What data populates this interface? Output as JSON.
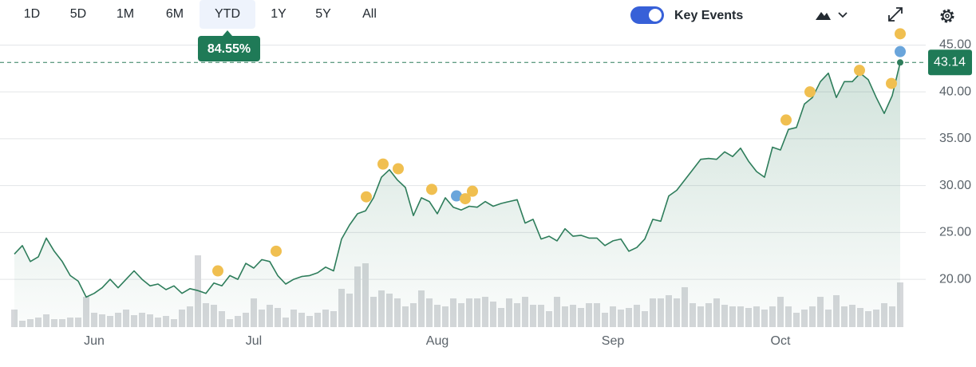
{
  "toolbar": {
    "ranges": [
      "1D",
      "5D",
      "1M",
      "6M",
      "YTD",
      "1Y",
      "5Y",
      "All"
    ],
    "selected_range": 4,
    "key_events_label": "Key Events",
    "key_events_on": true,
    "ytd_change": "84.55%"
  },
  "chart_data": {
    "type": "line",
    "color": "#2e7d5b",
    "grid": true,
    "categories": [
      null,
      null,
      null,
      null,
      null,
      null,
      null,
      null,
      null,
      null,
      "Jun",
      null,
      null,
      null,
      null,
      null,
      null,
      null,
      null,
      null,
      null,
      null,
      null,
      null,
      null,
      null,
      null,
      null,
      null,
      null,
      "Jul",
      null,
      null,
      null,
      null,
      null,
      null,
      null,
      null,
      null,
      null,
      null,
      null,
      null,
      null,
      null,
      null,
      null,
      null,
      null,
      null,
      null,
      null,
      "Aug",
      null,
      null,
      null,
      null,
      null,
      null,
      null,
      null,
      null,
      null,
      null,
      null,
      null,
      null,
      null,
      null,
      null,
      null,
      null,
      null,
      null,
      "Sep",
      null,
      null,
      null,
      null,
      null,
      null,
      null,
      null,
      null,
      null,
      null,
      null,
      null,
      null,
      null,
      null,
      null,
      null,
      null,
      null,
      "Oct",
      null,
      null,
      null,
      null,
      null,
      null,
      null,
      null,
      null,
      null,
      null,
      null,
      null,
      null,
      null
    ],
    "values": [
      22.7,
      23.6,
      21.9,
      22.4,
      24.4,
      23.0,
      21.9,
      20.4,
      19.8,
      18.1,
      18.5,
      19.1,
      20.0,
      19.1,
      20.0,
      20.9,
      20.0,
      19.3,
      19.5,
      18.9,
      19.3,
      18.5,
      19.0,
      18.8,
      18.5,
      19.6,
      19.3,
      20.4,
      20.0,
      21.7,
      21.2,
      22.1,
      21.9,
      20.4,
      19.5,
      20.0,
      20.3,
      20.4,
      20.7,
      21.3,
      20.9,
      24.3,
      25.8,
      27.0,
      27.3,
      28.7,
      30.9,
      31.7,
      30.6,
      29.8,
      26.8,
      28.7,
      28.3,
      27.0,
      28.7,
      27.7,
      27.4,
      27.8,
      27.7,
      28.3,
      27.8,
      28.1,
      28.3,
      28.5,
      26.0,
      26.4,
      24.3,
      24.6,
      24.1,
      25.4,
      24.6,
      24.7,
      24.4,
      24.4,
      23.6,
      24.1,
      24.3,
      23.0,
      23.4,
      24.3,
      26.4,
      26.2,
      28.9,
      29.5,
      30.6,
      31.7,
      32.8,
      32.9,
      32.8,
      33.6,
      33.1,
      34.0,
      32.6,
      31.5,
      30.9,
      34.1,
      33.8,
      36.0,
      36.2,
      38.7,
      39.4,
      41.1,
      42.0,
      39.4,
      41.1,
      41.1,
      42.0,
      41.3,
      39.4,
      37.7,
      39.6,
      43.14
    ],
    "volume": [
      22,
      8,
      10,
      12,
      16,
      10,
      10,
      12,
      12,
      38,
      18,
      16,
      14,
      18,
      22,
      15,
      18,
      16,
      12,
      14,
      10,
      22,
      26,
      90,
      30,
      28,
      20,
      10,
      14,
      18,
      36,
      22,
      28,
      24,
      12,
      22,
      18,
      14,
      18,
      22,
      20,
      48,
      42,
      76,
      80,
      38,
      46,
      42,
      36,
      26,
      30,
      46,
      36,
      28,
      26,
      36,
      30,
      36,
      36,
      38,
      32,
      24,
      36,
      30,
      38,
      28,
      28,
      20,
      38,
      26,
      28,
      24,
      30,
      30,
      18,
      26,
      22,
      24,
      28,
      20,
      36,
      36,
      40,
      36,
      50,
      30,
      26,
      30,
      36,
      28,
      26,
      26,
      24,
      26,
      22,
      26,
      38,
      26,
      18,
      22,
      26,
      38,
      22,
      40,
      26,
      28,
      24,
      20,
      22,
      30,
      26,
      56
    ],
    "volume_color": "#d6d8db",
    "events": {
      "x": [
        25.5,
        32.8,
        44.1,
        46.2,
        48.1,
        52.3,
        55.4,
        56.5,
        57.4,
        96.7,
        99.7,
        105.9,
        109.9,
        111,
        111
      ],
      "values": [
        20.9,
        23.0,
        28.8,
        32.3,
        31.8,
        29.6,
        28.9,
        28.6,
        29.4,
        37.0,
        40.0,
        42.3,
        40.9,
        44.3,
        46.2
      ],
      "colors": [
        "#f0bf50",
        "#f0bf50",
        "#f0bf50",
        "#f0bf50",
        "#f0bf50",
        "#f0bf50",
        "#6aa5db",
        "#f0bf50",
        "#f0bf50",
        "#f0bf50",
        "#f0bf50",
        "#f0bf50",
        "#f0bf50",
        "#6aa5db",
        "#f0bf50"
      ]
    },
    "ylim": [
      14.9,
      46.4
    ],
    "yticks": [
      {
        "value": 20,
        "label": "20.00"
      },
      {
        "value": 25,
        "label": "25.00"
      },
      {
        "value": 30,
        "label": "30.00"
      },
      {
        "value": 35,
        "label": "35.00"
      },
      {
        "value": 40,
        "label": "40.00"
      },
      {
        "value": 45,
        "label": "45.00"
      }
    ]
  }
}
